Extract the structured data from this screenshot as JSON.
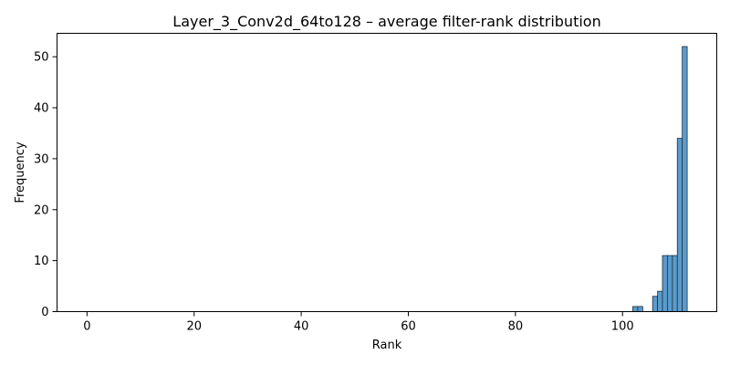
{
  "chart_data": {
    "type": "bar",
    "title": "Layer_3_Conv2d_64to128 – average filter-rank distribution",
    "xlabel": "Rank",
    "ylabel": "Frequency",
    "xlim": [
      -5.6,
      117.6
    ],
    "ylim": [
      0,
      54.6
    ],
    "xticks": [
      0,
      20,
      40,
      60,
      80,
      100
    ],
    "yticks": [
      0,
      10,
      20,
      30,
      40,
      50
    ],
    "bin_width": 0.93,
    "bins": [
      {
        "x0": 101.92,
        "value": 1
      },
      {
        "x0": 102.85,
        "value": 1
      },
      {
        "x0": 103.77,
        "value": 0
      },
      {
        "x0": 104.69,
        "value": 0
      },
      {
        "x0": 105.62,
        "value": 3
      },
      {
        "x0": 106.54,
        "value": 4
      },
      {
        "x0": 107.46,
        "value": 11
      },
      {
        "x0": 108.38,
        "value": 11
      },
      {
        "x0": 109.31,
        "value": 11
      },
      {
        "x0": 110.23,
        "value": 34
      },
      {
        "x0": 111.15,
        "value": 52
      }
    ],
    "grid": false,
    "colors": {
      "bar_fill": "#5a9bcb",
      "bar_edge": "#1f2f3f"
    }
  }
}
